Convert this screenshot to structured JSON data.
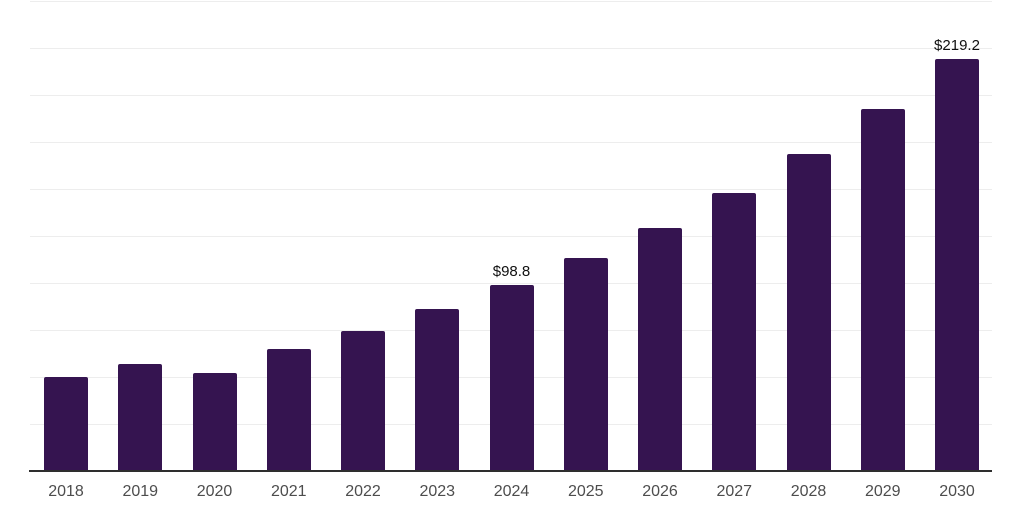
{
  "chart_data": {
    "type": "bar",
    "title": "",
    "xlabel": "",
    "ylabel": "",
    "categories": [
      "2018",
      "2019",
      "2020",
      "2021",
      "2022",
      "2023",
      "2024",
      "2025",
      "2026",
      "2027",
      "2028",
      "2029",
      "2030"
    ],
    "values": [
      49.9,
      56.9,
      52.1,
      64.9,
      74.5,
      86.2,
      98.8,
      113.3,
      129.4,
      147.9,
      168.6,
      192.6,
      219.2
    ],
    "point_labels": [
      "",
      "",
      "",
      "",
      "",
      "",
      "$98.8",
      "",
      "",
      "",
      "",
      "",
      "$219.2"
    ],
    "ylim": [
      0,
      250
    ],
    "gridline_step": 25,
    "grid": "horizontal",
    "y_tick_labels_visible": false,
    "legend": "none",
    "colors": {
      "bar": "#351450",
      "gridline": "#ededed",
      "axis_line": "#2e2e2e",
      "x_tick_label": "#4d4d4d",
      "data_label": "#111111",
      "background": "#ffffff"
    }
  }
}
